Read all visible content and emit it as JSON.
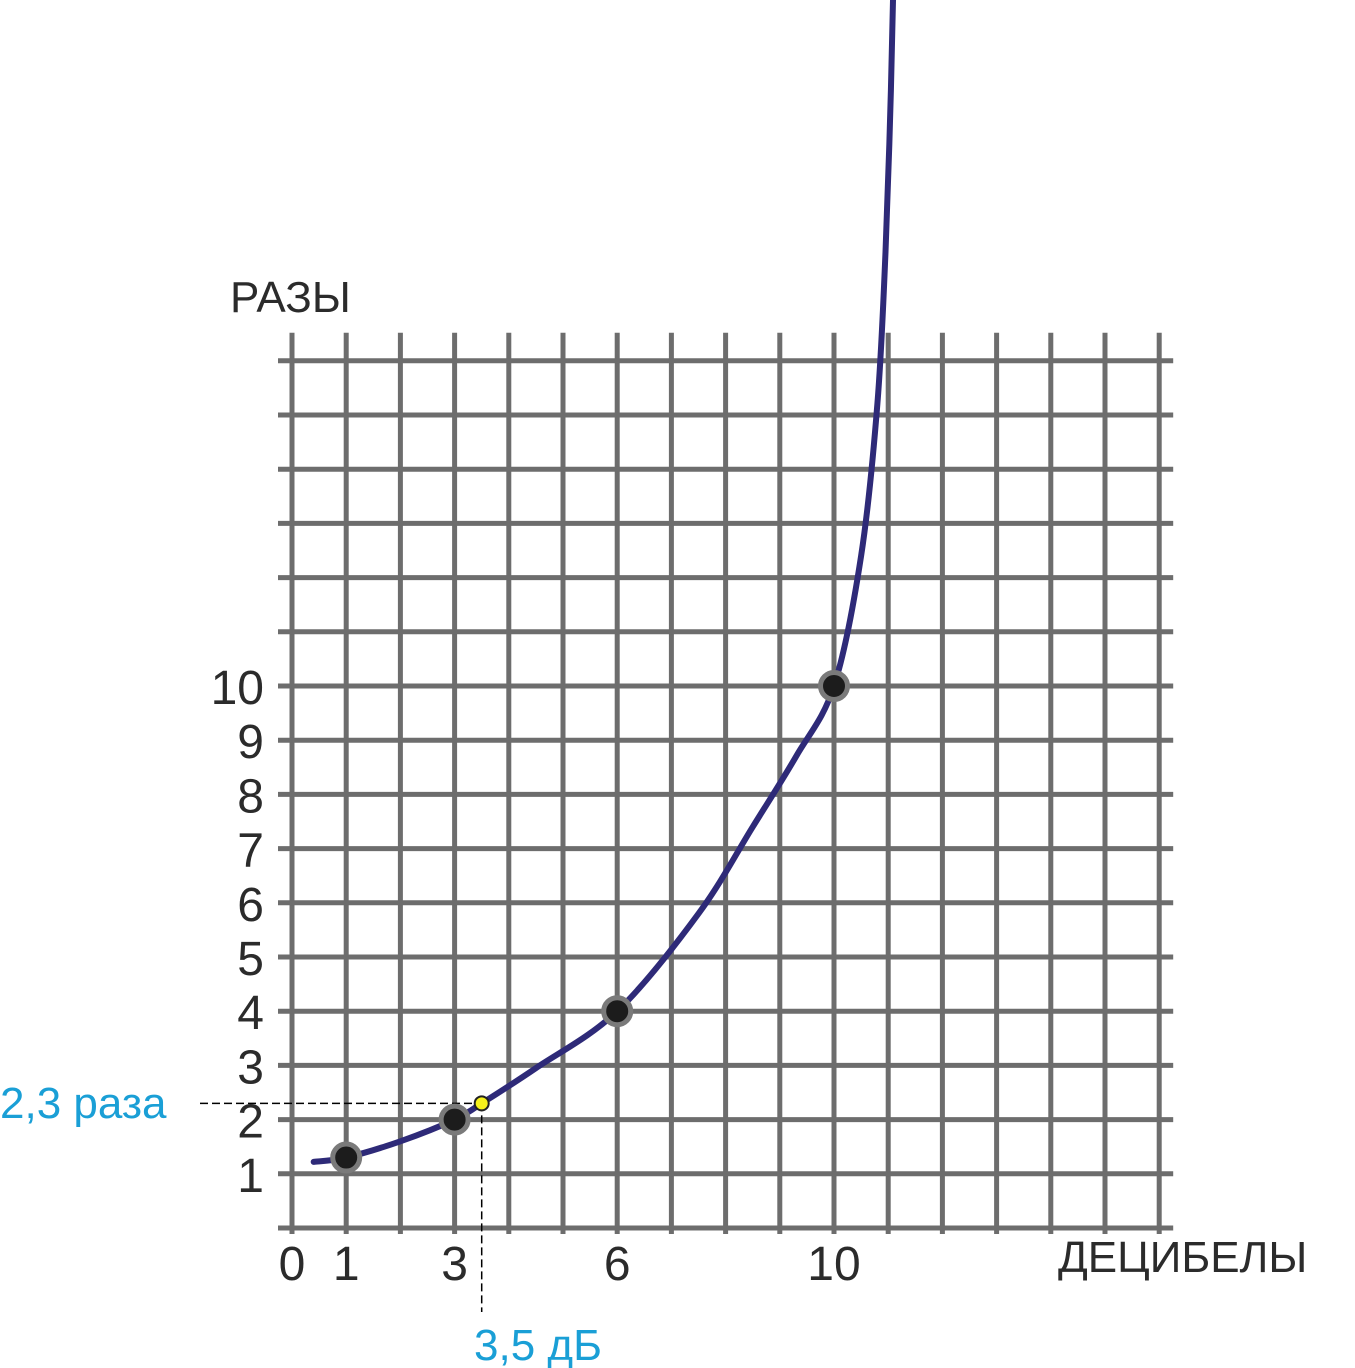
{
  "chart_data": {
    "type": "line",
    "ylabel": "РАЗЫ",
    "xlabel": "ДЕЦИБЕЛЫ",
    "x_ticks": [
      "0",
      "1",
      "3",
      "6",
      "10"
    ],
    "y_ticks": [
      "1",
      "2",
      "3",
      "4",
      "5",
      "6",
      "7",
      "8",
      "9",
      "10"
    ],
    "xlim": [
      0,
      16
    ],
    "ylim": [
      0,
      16
    ],
    "grid": true,
    "series": [
      {
        "x": [
          1,
          3,
          6,
          10
        ],
        "y": [
          1.3,
          2,
          4,
          10
        ]
      }
    ],
    "annotation": {
      "x": 3.5,
      "y": 2.3,
      "x_label": "3,5 дБ",
      "y_label": "2,3 раза"
    },
    "colors": {
      "curve": "#2e2a78",
      "grid": "#6d6d6d",
      "point": "#1c1c1c",
      "point_ring": "#7a7a7a",
      "highlight": "#f7f21b",
      "annotation": "#1a9fd6"
    }
  }
}
